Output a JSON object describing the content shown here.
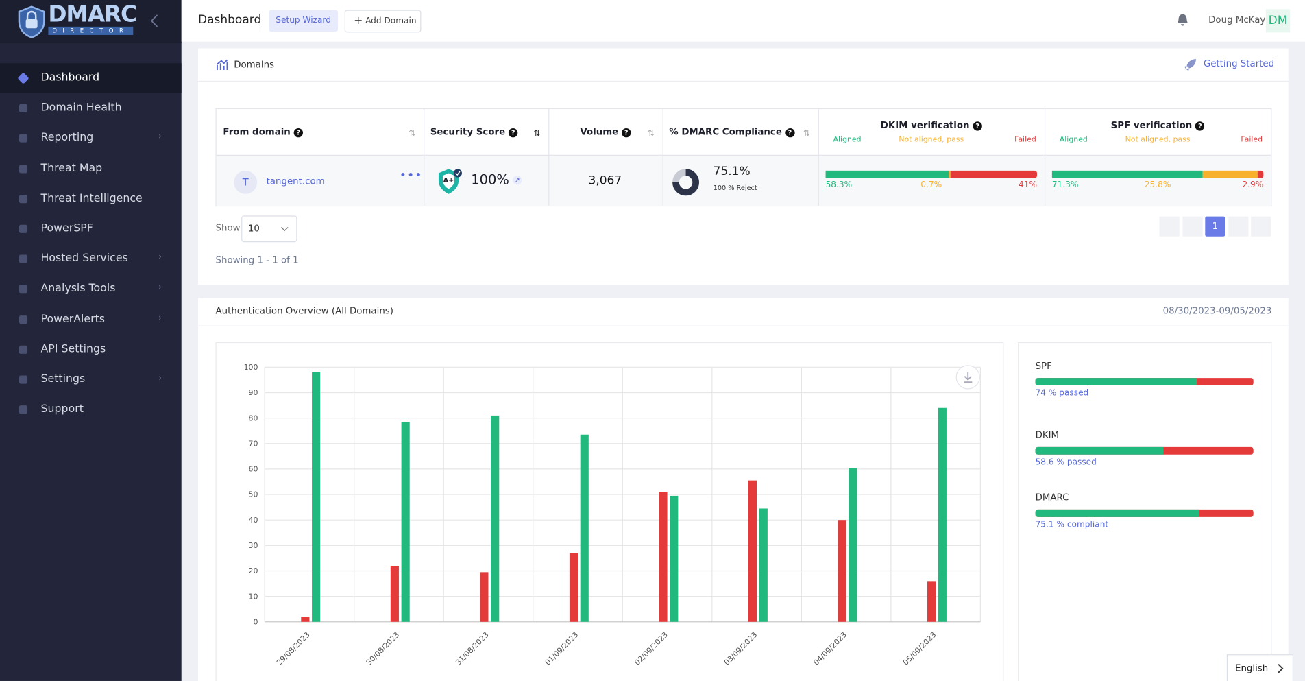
{
  "sidebar": {
    "logo": "DMARC",
    "logo_sub": "DIRECTOR",
    "menu": [
      "Dashboard",
      "Domain Health",
      "Reporting",
      "Threat Map",
      "Threat Intelligence",
      "PowerSPF",
      "Hosted Services",
      "Analysis Tools",
      "PowerAlerts",
      "API Settings",
      "Settings",
      "Support"
    ]
  },
  "header": {
    "title": "Dashboard",
    "setup_wizard": "Setup Wizard",
    "add_domain": "Add Domain",
    "user": "Doug McKay",
    "avatar": "DM"
  },
  "domains": {
    "title": "Domains",
    "getting_started": "Getting Started",
    "columns": [
      "From domain",
      "Security Score",
      "Volume",
      "% DMARC Compliance",
      "DKIM verification",
      "SPF verification"
    ],
    "verification_legend": [
      "Aligned",
      "Not aligned, pass",
      "Failed"
    ],
    "row": {
      "avatar": "T",
      "domain": "tangent.com",
      "grade": "A+",
      "score": "100%",
      "volume": "3,067",
      "compliance": 75.1,
      "compliance_label": "75.1%",
      "policy": "100 % Reject",
      "dkim": {
        "values": [
          58.3,
          0.7,
          41
        ],
        "value_labels": [
          "58.3%",
          "0.7%",
          "41%"
        ]
      },
      "spf": {
        "values": [
          71.3,
          25.8,
          2.9
        ],
        "value_labels": [
          "71.3%",
          "25.8%",
          "2.9%"
        ]
      }
    },
    "show_label": "Show",
    "page_size": "10",
    "showing": "Showing 1 - 1 of 1",
    "page": "1"
  },
  "chart_data": {
    "type": "bar",
    "title": "Authentication Overview (All Domains)",
    "subtitle": "08/30/2023-09/05/2023",
    "categories": [
      "29/08/2023",
      "30/08/2023",
      "31/08/2023",
      "01/09/2023",
      "02/09/2023",
      "03/09/2023",
      "04/09/2023",
      "05/09/2023"
    ],
    "series": [
      {
        "color": "#e53a3a",
        "values": [
          2,
          22,
          19.5,
          27,
          51,
          55.5,
          40,
          16
        ]
      },
      {
        "color": "#21b97e",
        "values": [
          98,
          78.5,
          81,
          73.5,
          49.5,
          44.5,
          60.5,
          84
        ]
      }
    ],
    "ylim": [
      0,
      100
    ],
    "yticks": [
      0,
      10,
      20,
      30,
      40,
      50,
      60,
      70,
      80,
      90,
      100
    ],
    "grid": true
  },
  "summary": [
    {
      "name": "SPF",
      "value": 74,
      "value_label": "74 % passed"
    },
    {
      "name": "DKIM",
      "value": 58.6,
      "value_label": "58.6 % passed"
    },
    {
      "name": "DMARC",
      "value": 75.1,
      "value_label": "75.1 % compliant"
    }
  ],
  "language": "English"
}
